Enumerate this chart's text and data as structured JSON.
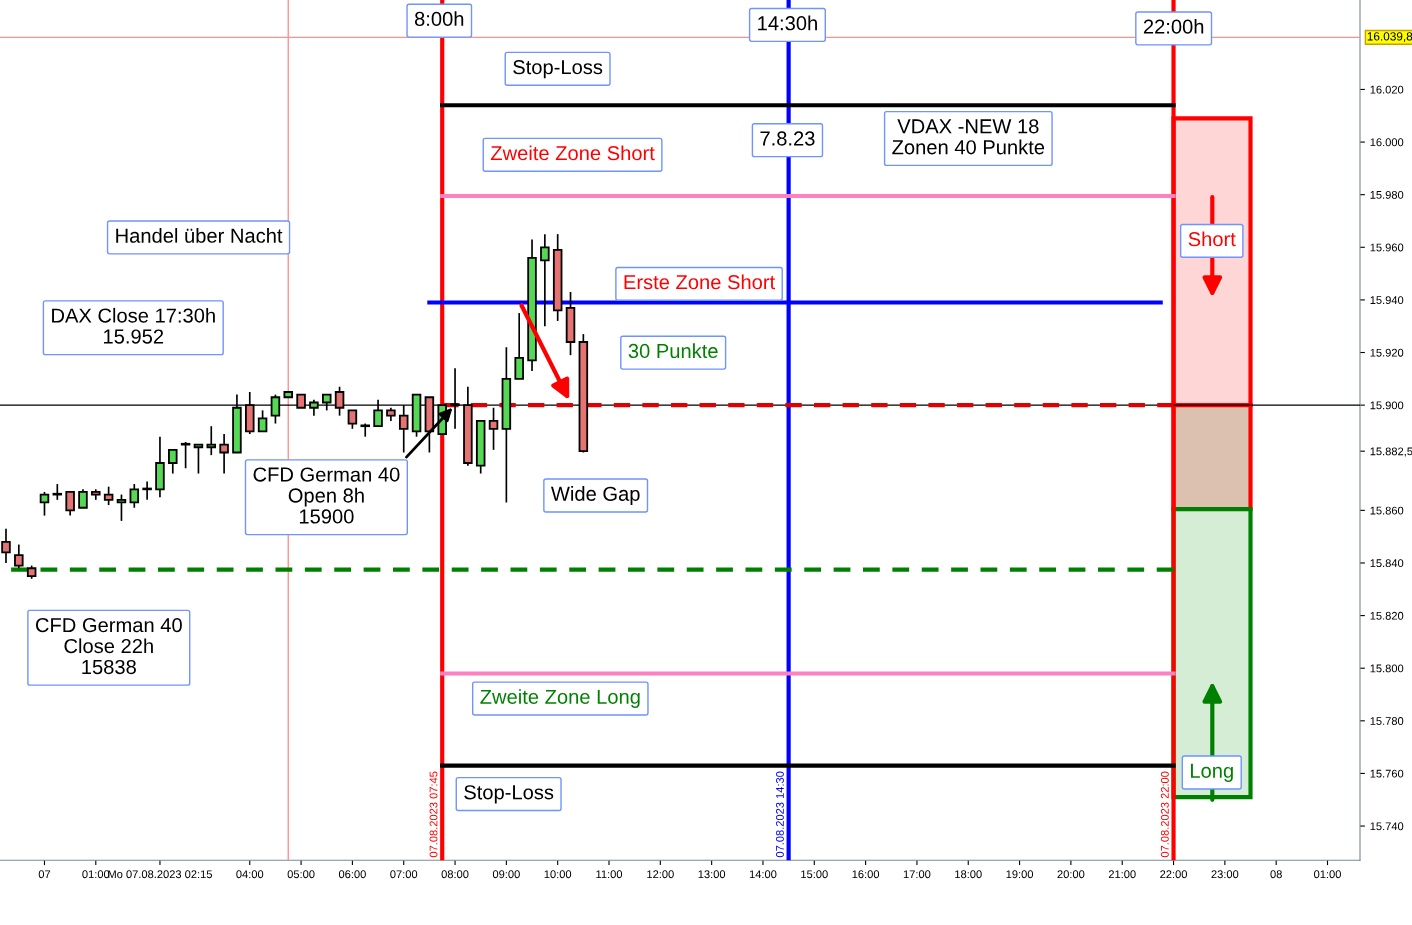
{
  "chart_data": {
    "type": "candlestick",
    "x": [
      "2023-08-06T23:15",
      "2023-08-06T23:30",
      "2023-08-06T23:45",
      "2023-08-07T00:00",
      "2023-08-07T00:15",
      "2023-08-07T00:30",
      "2023-08-07T00:45",
      "2023-08-07T01:00",
      "2023-08-07T01:15",
      "2023-08-07T01:30",
      "2023-08-07T01:45",
      "2023-08-07T02:00",
      "2023-08-07T02:15",
      "2023-08-07T02:30",
      "2023-08-07T02:45",
      "2023-08-07T03:00",
      "2023-08-07T03:15",
      "2023-08-07T03:30",
      "2023-08-07T03:45",
      "2023-08-07T04:00",
      "2023-08-07T04:15",
      "2023-08-07T04:30",
      "2023-08-07T04:45",
      "2023-08-07T05:00",
      "2023-08-07T05:15",
      "2023-08-07T05:30",
      "2023-08-07T05:45",
      "2023-08-07T06:00",
      "2023-08-07T06:15",
      "2023-08-07T06:30",
      "2023-08-07T06:45",
      "2023-08-07T07:00",
      "2023-08-07T07:15",
      "2023-08-07T07:30",
      "2023-08-07T07:45",
      "2023-08-07T08:00",
      "2023-08-07T08:15",
      "2023-08-07T08:30",
      "2023-08-07T08:45",
      "2023-08-07T09:00",
      "2023-08-07T09:15",
      "2023-08-07T09:30",
      "2023-08-07T09:45",
      "2023-08-07T10:00",
      "2023-08-07T10:15",
      "2023-08-07T10:30"
    ],
    "ohlc": [
      [
        15848,
        15853,
        15840,
        15844
      ],
      [
        15843,
        15847,
        15838,
        15839
      ],
      [
        15838,
        15839,
        15834,
        15835
      ],
      [
        15863,
        15867,
        15858,
        15866
      ],
      [
        15866,
        15870,
        15864,
        15866
      ],
      [
        15867,
        15867,
        15858,
        15860
      ],
      [
        15861,
        15868,
        15861,
        15867
      ],
      [
        15867,
        15868,
        15864,
        15866
      ],
      [
        15866,
        15869,
        15862,
        15864
      ],
      [
        15863,
        15866,
        15856,
        15864
      ],
      [
        15863,
        15870,
        15861,
        15868
      ],
      [
        15868,
        15871,
        15864,
        15868
      ],
      [
        15868,
        15888,
        15865,
        15878
      ],
      [
        15878,
        15883,
        15874,
        15883
      ],
      [
        15885,
        15886,
        15876,
        15885
      ],
      [
        15884,
        15885,
        15874,
        15885
      ],
      [
        15884,
        15892,
        15881,
        15885
      ],
      [
        15885,
        15889,
        15874,
        15882
      ],
      [
        15882,
        15904,
        15882,
        15899
      ],
      [
        15900,
        15905,
        15889,
        15890
      ],
      [
        15890,
        15898,
        15890,
        15895
      ],
      [
        15896,
        15904,
        15893,
        15903
      ],
      [
        15903,
        15905,
        15903,
        15905
      ],
      [
        15904,
        15904,
        15899,
        15899
      ],
      [
        15899,
        15902,
        15896,
        15901
      ],
      [
        15901,
        15904,
        15898,
        15904
      ],
      [
        15905,
        15907,
        15896,
        15899
      ],
      [
        15898,
        15898,
        15891,
        15893
      ],
      [
        15892,
        15893,
        15888,
        15892
      ],
      [
        15892,
        15902,
        15892,
        15898
      ],
      [
        15898,
        15899,
        15894,
        15896
      ],
      [
        15896,
        15900,
        15882,
        15891
      ],
      [
        15890,
        15904,
        15888,
        15904
      ],
      [
        15903,
        15903,
        15882,
        15890
      ],
      [
        15889,
        15900,
        15889,
        15900
      ],
      [
        15900,
        15914,
        15891,
        15900
      ],
      [
        15900,
        15907,
        15877,
        15878
      ],
      [
        15877,
        15894,
        15874,
        15894
      ],
      [
        15894,
        15899,
        15883,
        15891
      ],
      [
        15891,
        15922,
        15863,
        15910
      ],
      [
        15910,
        15935,
        15910,
        15918
      ],
      [
        15917,
        15963,
        15913,
        15956
      ],
      [
        15955,
        15965,
        15930,
        15960
      ],
      [
        15959,
        15965,
        15932,
        15936
      ],
      [
        15937,
        15943,
        15919,
        15924
      ],
      [
        15924,
        15927,
        15882,
        15882.5
      ]
    ],
    "series": [
      {
        "type": "line",
        "x": [
          "2023-08-07T07:45",
          "2023-08-07T22:00"
        ],
        "values": [
          16014,
          16014
        ],
        "color": "#000000"
      },
      {
        "type": "line",
        "x": [
          "2023-08-07T07:45",
          "2023-08-07T22:00"
        ],
        "values": [
          15979.5,
          15979.5
        ],
        "color": "#ff80c0"
      },
      {
        "type": "line",
        "x": [
          "2023-08-07T07:30",
          "2023-08-07T21:45"
        ],
        "values": [
          15939,
          15939
        ],
        "color": "#0000ff"
      },
      {
        "type": "line",
        "x": [
          "2023-08-07T07:45",
          "2023-08-07T22:00"
        ],
        "values": [
          15900,
          15900
        ],
        "color": "#e00000",
        "line_style": "dashed"
      },
      {
        "type": "line",
        "x": [
          "2023-08-06T23:21",
          "2023-08-07T22:00"
        ],
        "values": [
          15837.5,
          15837.5
        ],
        "color": "#008000",
        "line_style": "dashed"
      },
      {
        "type": "line",
        "x": [
          "2023-08-07T07:45",
          "2023-08-07T22:00"
        ],
        "values": [
          15798,
          15798
        ],
        "color": "#ff80c0"
      },
      {
        "type": "line",
        "x": [
          "2023-08-07T07:45",
          "2023-08-07T22:00"
        ],
        "values": [
          15763,
          15763
        ],
        "color": "#000000"
      },
      {
        "type": "bar",
        "x": [
          "2023-08-07T22:45"
        ],
        "base": [
          15900
        ],
        "values": [
          109
        ],
        "colors": [
          "#ffd6d6"
        ],
        "color": "#ff0000"
      },
      {
        "type": "bar",
        "x": [
          "2023-08-07T22:45"
        ],
        "base": [
          15860.5
        ],
        "values": [
          39.5
        ],
        "colors": [
          "#dcc0b0"
        ],
        "color": "#ff0000"
      },
      {
        "type": "bar",
        "x": [
          "2023-08-07T22:45"
        ],
        "base": [
          15751
        ],
        "values": [
          109.5
        ],
        "colors": [
          "#d5ecd5"
        ],
        "color": "#008000"
      }
    ],
    "ref_lines": [
      {
        "axis": "x",
        "value": "2023-08-07T07:45",
        "label": "07.08.2023 07:45",
        "color": "#ff0000"
      },
      {
        "axis": "x",
        "value": "2023-08-07T14:30",
        "label": "07.08.2023 14:30",
        "color": "#0000ff"
      },
      {
        "axis": "x",
        "value": "2023-08-07T22:00",
        "label": "07.08.2023 22:00",
        "color": "#ff0000"
      },
      {
        "axis": "x",
        "value": "2023-08-07T04:45",
        "color": "#ff9090"
      },
      {
        "axis": "y",
        "value": 16039.8,
        "label": "16.039,8",
        "color": "#ff9090"
      },
      {
        "axis": "y",
        "value": 15900,
        "color": "#000000"
      }
    ],
    "annotations": [
      "8:00h",
      "14:30h",
      "22:00h",
      "Stop-Loss",
      "VDAX -NEW 18\nZonen 40 Punkte",
      "7.8.23",
      "Zweite Zone Short",
      "Handel über Nacht",
      "DAX Close 17:30h\n15.952",
      "Erste Zone Short",
      "30 Punkte",
      {
        "text": "CFD German 40\nOpen 8h\n15900",
        "x": "2023-08-07T07:57",
        "y": 15899
      },
      "Wide Gap",
      "Short",
      "CFD German 40\nClose 22h\n15838",
      "Zweite Zone Long",
      "Stop-Loss",
      "Long"
    ],
    "xlim": [
      "2023-08-06T23:08",
      "2023-08-08T01:38"
    ],
    "ylim": [
      15727,
      16054
    ],
    "xticks": [
      {
        "value": "2023-08-07T00:00",
        "label": "07"
      },
      {
        "value": "2023-08-07T01:00",
        "label": "01:00"
      },
      {
        "value": "2023-08-07T02:15",
        "label": "Mo 07.08.2023 02:15"
      },
      {
        "value": "2023-08-07T04:00",
        "label": "04:00"
      },
      {
        "value": "2023-08-07T05:00",
        "label": "05:00"
      },
      {
        "value": "2023-08-07T06:00",
        "label": "06:00"
      },
      {
        "value": "2023-08-07T07:00",
        "label": "07:00"
      },
      {
        "value": "2023-08-07T08:00",
        "label": "08:00"
      },
      {
        "value": "2023-08-07T09:00",
        "label": "09:00"
      },
      {
        "value": "2023-08-07T10:00",
        "label": "10:00"
      },
      {
        "value": "2023-08-07T11:00",
        "label": "11:00"
      },
      {
        "value": "2023-08-07T12:00",
        "label": "12:00"
      },
      {
        "value": "2023-08-07T13:00",
        "label": "13:00"
      },
      {
        "value": "2023-08-07T14:00",
        "label": "14:00"
      },
      {
        "value": "2023-08-07T15:00",
        "label": "15:00"
      },
      {
        "value": "2023-08-07T16:00",
        "label": "16:00"
      },
      {
        "value": "2023-08-07T17:00",
        "label": "17:00"
      },
      {
        "value": "2023-08-07T18:00",
        "label": "18:00"
      },
      {
        "value": "2023-08-07T19:00",
        "label": "19:00"
      },
      {
        "value": "2023-08-07T20:00",
        "label": "20:00"
      },
      {
        "value": "2023-08-07T21:00",
        "label": "21:00"
      },
      {
        "value": "2023-08-07T22:00",
        "label": "22:00"
      },
      {
        "value": "2023-08-07T23:00",
        "label": "23:00"
      },
      {
        "value": "2023-08-08T00:00",
        "label": "08"
      },
      {
        "value": "2023-08-08T01:00",
        "label": "01:00"
      }
    ],
    "yticks": [
      {
        "value": 15740,
        "label": "15.740"
      },
      {
        "value": 15760,
        "label": "15.760"
      },
      {
        "value": 15780,
        "label": "15.780"
      },
      {
        "value": 15800,
        "label": "15.800"
      },
      {
        "value": 15820,
        "label": "15.820"
      },
      {
        "value": 15840,
        "label": "15.840"
      },
      {
        "value": 15860,
        "label": "15.860"
      },
      {
        "value": 15882.5,
        "label": "15.882,5"
      },
      {
        "value": 15900,
        "label": "15.900"
      },
      {
        "value": 15920,
        "label": "15.920"
      },
      {
        "value": 15940,
        "label": "15.940"
      },
      {
        "value": 15960,
        "label": "15.960"
      },
      {
        "value": 15980,
        "label": "15.980"
      },
      {
        "value": 16000,
        "label": "16.000"
      },
      {
        "value": 16020,
        "label": "16.020"
      }
    ],
    "grid": false,
    "legend": false
  }
}
